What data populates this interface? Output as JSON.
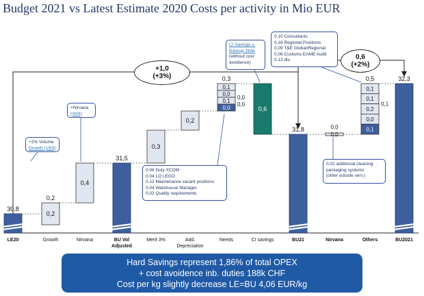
{
  "title": "Budget 2021 vs Latest Estimate 2020 Costs per activity in Mio EUR",
  "chart_data": {
    "type": "bar",
    "subtype": "waterfall",
    "categories": [
      "LE20",
      "Growth",
      "Nirvana",
      "BU Vol Adjusted",
      "Merit 3%",
      "Add. Depreciation",
      "Needs",
      "CI savings",
      "BU21",
      "Nirvana",
      "Others",
      "BU2021"
    ],
    "bars": [
      {
        "category": "LE20",
        "kind": "total",
        "value": 30.8,
        "label": "30,8"
      },
      {
        "category": "Growth",
        "kind": "delta",
        "value": 0.2,
        "label": "0,2",
        "outside_label": "0,2"
      },
      {
        "category": "Nirvana",
        "kind": "delta",
        "value": 0.4,
        "label": "0,4"
      },
      {
        "category": "BU Vol Adjusted",
        "kind": "total",
        "value": 31.5,
        "label": "31,5"
      },
      {
        "category": "Merit 3%",
        "kind": "delta",
        "value": 0.3,
        "label": "0,3"
      },
      {
        "category": "Add. Depreciation",
        "kind": "delta",
        "value": 0.2,
        "label": "0,2"
      },
      {
        "category": "Needs",
        "kind": "stack",
        "value": 0.3,
        "label": "0,3",
        "segments": [
          "0,1",
          "0,0",
          "0,1",
          "0,0"
        ],
        "side_labels": [
          "0,0",
          "0,0"
        ]
      },
      {
        "category": "CI savings",
        "kind": "delta-negative",
        "value": 0.6,
        "label": "0,6"
      },
      {
        "category": "BU21",
        "kind": "total",
        "value": 31.8,
        "label": "31,8"
      },
      {
        "category": "Nirvana",
        "kind": "delta",
        "value": 0.0,
        "label": "0,0",
        "segment_label": "0,0"
      },
      {
        "category": "Others",
        "kind": "stack",
        "value": 0.5,
        "label": "0,5",
        "segments": [
          "0,1",
          "0,1",
          "0,2",
          "0,0",
          "0,1"
        ],
        "side_labels": [
          "0,1"
        ]
      },
      {
        "category": "BU2021",
        "kind": "total",
        "value": 32.3,
        "label": "32,3"
      }
    ],
    "grid": false,
    "legend": "none"
  },
  "annotations": {
    "oval_left": {
      "line1": "+1,0",
      "line2": "(+3%)"
    },
    "oval_right": {
      "line1": "0,6",
      "line2": "(+2%)"
    },
    "growth": {
      "line1": "+2% Volume",
      "line2": "Growth (150t)"
    },
    "nirvana": {
      "line1": "+Nirvana",
      "line2": "(300t)"
    },
    "ci": {
      "line1": "CI Savings s.",
      "line2": "Backup Slide",
      "line3": "(without cost",
      "line4": "avoidence)"
    },
    "needs_items": [
      "0,06 Duty XCOM",
      "0,04 LQ LEGO",
      "0,12 Maintenance vacant positions",
      "0,04 Warehouse Manager",
      "0,02 Quality requirements"
    ],
    "others_items": [
      "0,10 Consultants",
      "0,16 Regional Positions",
      "0,09 T&E Global/Regional",
      "0,06 Customs EAME Audit",
      "0,13 div."
    ],
    "nirvana2_items": [
      "0,02 additional cleaning",
      "packaging systems",
      "(other outside serv.)"
    ]
  },
  "banner": {
    "line1": "Hard Savings represent  1,86% of total OPEX",
    "line2": "+ cost avoidence inb. duties 188k CHF",
    "line3": "Cost per kg slightly decrease LE=BU 4,06 EUR/kg"
  },
  "colors": {
    "total": "#3e5f9e",
    "delta": "#e1e7f1",
    "ci": "#1a7a6e",
    "title": "#1f3864",
    "banner": "#1f5aa6"
  }
}
